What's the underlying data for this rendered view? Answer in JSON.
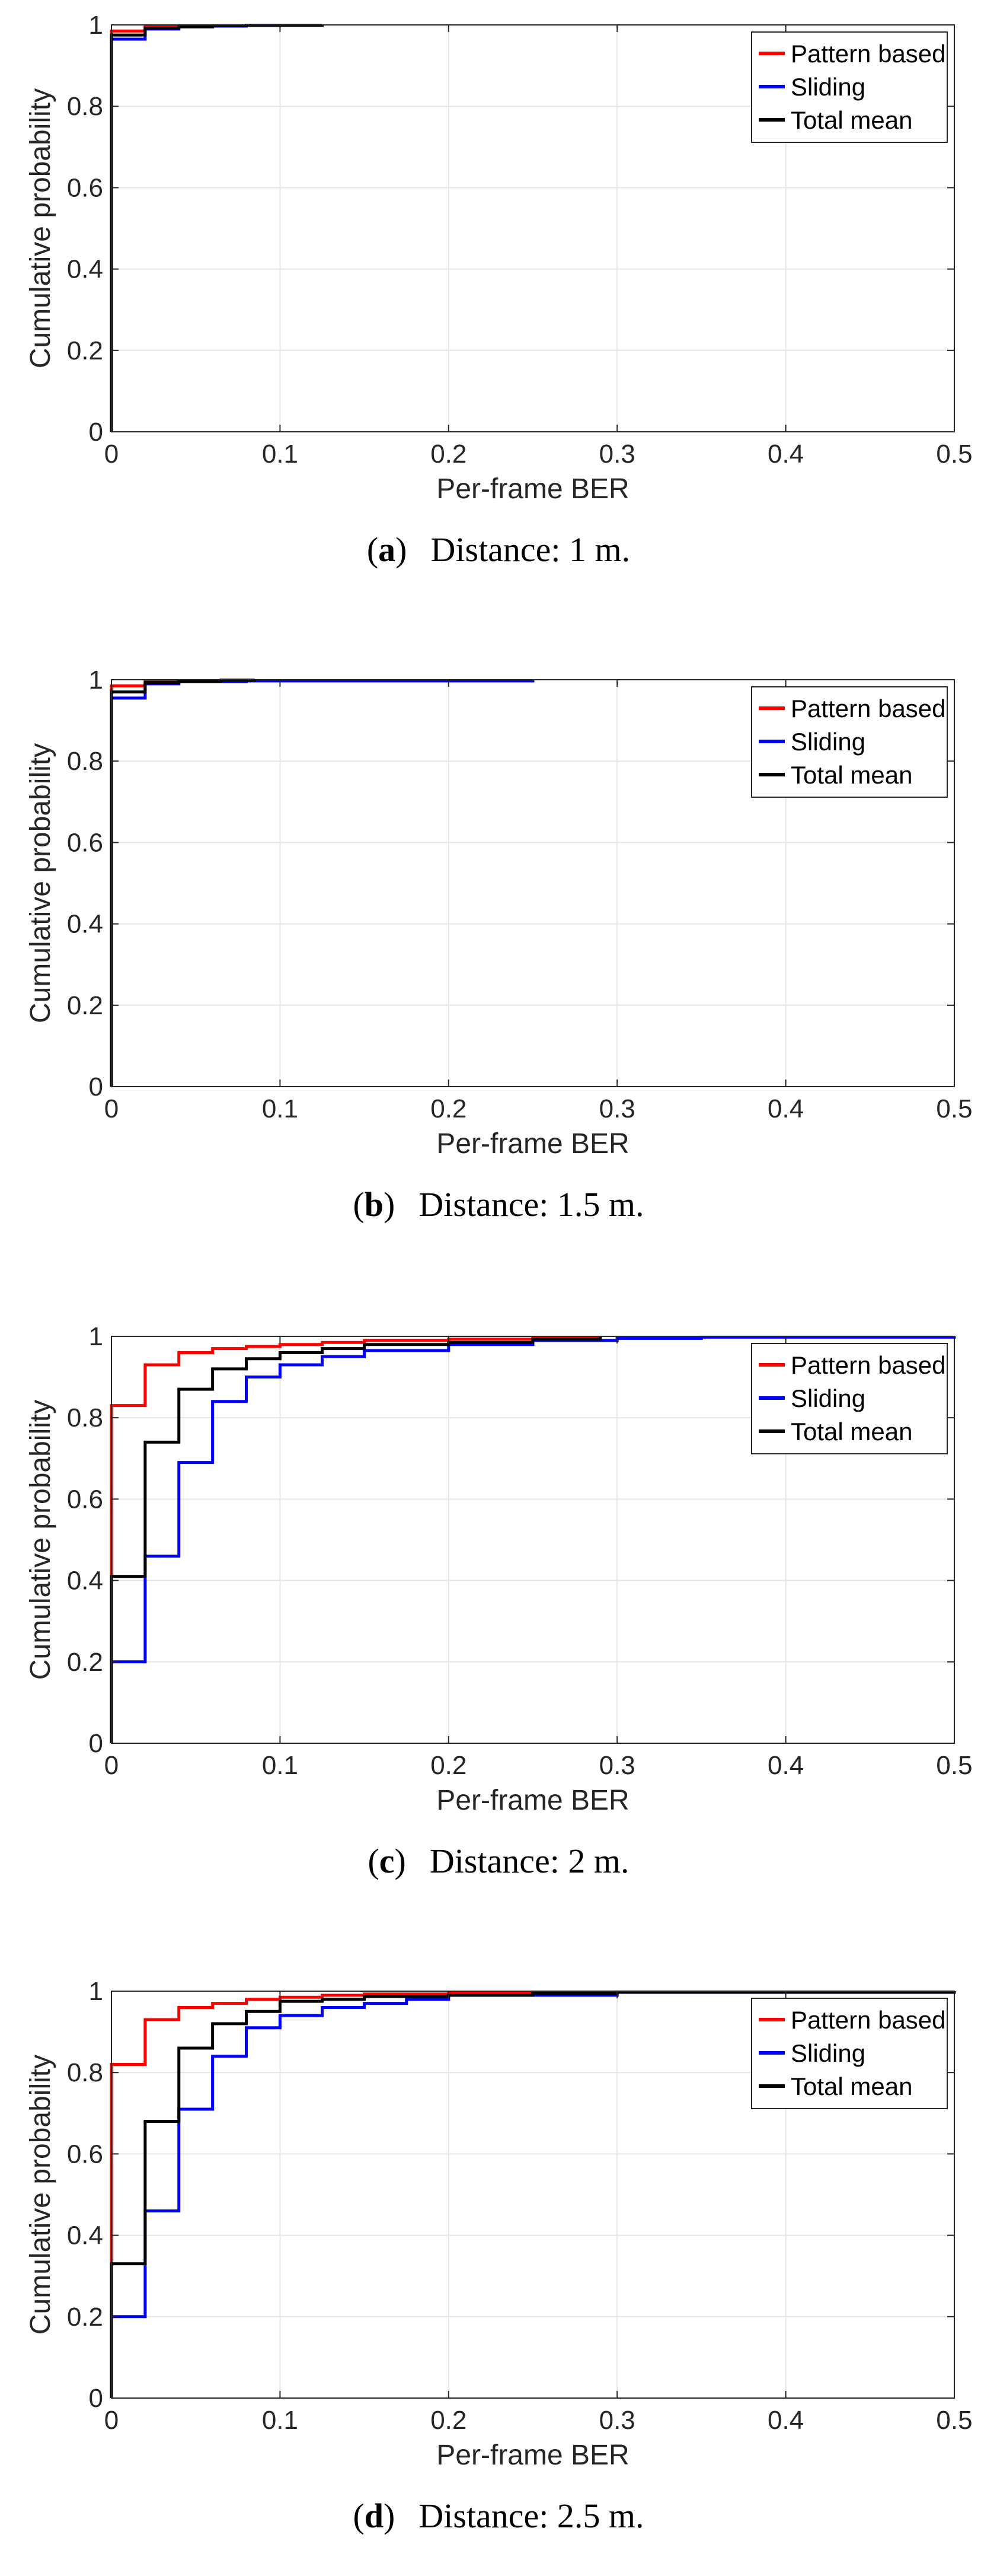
{
  "figure": {
    "series_colors": {
      "Pattern based": "#ff0000",
      "Sliding": "#0000ff",
      "Total mean": "#000000"
    }
  },
  "chart_data": [
    {
      "type": "line",
      "step": true,
      "caption_letter": "a",
      "caption_text": "Distance: 1 m.",
      "xlabel": "Per-frame BER",
      "ylabel": "Cumulative probability",
      "xlim": [
        0,
        0.5
      ],
      "ylim": [
        0,
        1
      ],
      "xticks": [
        0,
        0.1,
        0.2,
        0.3,
        0.4,
        0.5
      ],
      "xtick_labels": [
        "0",
        "0.1",
        "0.2",
        "0.3",
        "0.4",
        "0.5"
      ],
      "yticks": [
        0,
        0.2,
        0.4,
        0.6,
        0.8,
        1
      ],
      "ytick_labels": [
        "0",
        "0.2",
        "0.4",
        "0.6",
        "0.8",
        "1"
      ],
      "grid": true,
      "legend_position": "top-right",
      "series": [
        {
          "name": "Pattern based",
          "color": "#ff0000",
          "x": [
            0,
            0,
            0.02,
            0.04
          ],
          "y": [
            0,
            0.985,
            0.995,
            1.0
          ]
        },
        {
          "name": "Sliding",
          "color": "#0000ff",
          "x": [
            0,
            0,
            0.02,
            0.04,
            0.06,
            0.08,
            0.1
          ],
          "y": [
            0,
            0.965,
            0.99,
            0.995,
            0.997,
            0.999,
            1.0
          ]
        },
        {
          "name": "Total mean",
          "color": "#000000",
          "x": [
            0,
            0,
            0.02,
            0.04,
            0.06,
            0.08,
            0.125
          ],
          "y": [
            0,
            0.975,
            0.992,
            0.996,
            0.998,
            0.999,
            1.0
          ]
        }
      ]
    },
    {
      "type": "line",
      "step": true,
      "caption_letter": "b",
      "caption_text": "Distance: 1.5 m.",
      "xlabel": "Per-frame BER",
      "ylabel": "Cumulative probability",
      "xlim": [
        0,
        0.5
      ],
      "ylim": [
        0,
        1
      ],
      "xticks": [
        0,
        0.1,
        0.2,
        0.3,
        0.4,
        0.5
      ],
      "xtick_labels": [
        "0",
        "0.1",
        "0.2",
        "0.3",
        "0.4",
        "0.5"
      ],
      "yticks": [
        0,
        0.2,
        0.4,
        0.6,
        0.8,
        1
      ],
      "ytick_labels": [
        "0",
        "0.2",
        "0.4",
        "0.6",
        "0.8",
        "1"
      ],
      "grid": true,
      "legend_position": "top-right",
      "series": [
        {
          "name": "Pattern based",
          "color": "#ff0000",
          "x": [
            0,
            0,
            0.02,
            0.04
          ],
          "y": [
            0,
            0.985,
            0.995,
            1.0
          ]
        },
        {
          "name": "Sliding",
          "color": "#0000ff",
          "x": [
            0,
            0,
            0.02,
            0.04,
            0.08,
            0.25
          ],
          "y": [
            0,
            0.955,
            0.99,
            0.995,
            0.997,
            1.0
          ]
        },
        {
          "name": "Total mean",
          "color": "#000000",
          "x": [
            0,
            0,
            0.02,
            0.04,
            0.065,
            0.085
          ],
          "y": [
            0,
            0.97,
            0.993,
            0.996,
            0.999,
            1.0
          ]
        }
      ]
    },
    {
      "type": "line",
      "step": true,
      "caption_letter": "c",
      "caption_text": "Distance: 2 m.",
      "xlabel": "Per-frame BER",
      "ylabel": "Cumulative probability",
      "xlim": [
        0,
        0.5
      ],
      "ylim": [
        0,
        1
      ],
      "xticks": [
        0,
        0.1,
        0.2,
        0.3,
        0.4,
        0.5
      ],
      "xtick_labels": [
        "0",
        "0.1",
        "0.2",
        "0.3",
        "0.4",
        "0.5"
      ],
      "yticks": [
        0,
        0.2,
        0.4,
        0.6,
        0.8,
        1
      ],
      "ytick_labels": [
        "0",
        "0.2",
        "0.4",
        "0.6",
        "0.8",
        "1"
      ],
      "grid": true,
      "legend_position": "top-right",
      "series": [
        {
          "name": "Pattern based",
          "color": "#ff0000",
          "x": [
            0,
            0,
            0.02,
            0.04,
            0.06,
            0.08,
            0.1,
            0.125,
            0.15,
            0.2,
            0.25,
            0.29
          ],
          "y": [
            0,
            0.83,
            0.93,
            0.96,
            0.97,
            0.975,
            0.98,
            0.985,
            0.99,
            0.993,
            0.997,
            1.0
          ]
        },
        {
          "name": "Sliding",
          "color": "#0000ff",
          "x": [
            0,
            0,
            0.02,
            0.04,
            0.06,
            0.08,
            0.1,
            0.125,
            0.15,
            0.2,
            0.25,
            0.3,
            0.35,
            0.5
          ],
          "y": [
            0,
            0.2,
            0.46,
            0.69,
            0.84,
            0.9,
            0.93,
            0.95,
            0.965,
            0.98,
            0.99,
            0.995,
            0.998,
            1.0
          ]
        },
        {
          "name": "Total mean",
          "color": "#000000",
          "x": [
            0,
            0,
            0.02,
            0.04,
            0.06,
            0.08,
            0.1,
            0.125,
            0.15,
            0.2,
            0.25,
            0.29
          ],
          "y": [
            0,
            0.41,
            0.74,
            0.87,
            0.92,
            0.945,
            0.96,
            0.97,
            0.98,
            0.985,
            0.993,
            1.0
          ]
        }
      ]
    },
    {
      "type": "line",
      "step": true,
      "caption_letter": "d",
      "caption_text": "Distance: 2.5 m.",
      "xlabel": "Per-frame BER",
      "ylabel": "Cumulative probability",
      "xlim": [
        0,
        0.5
      ],
      "ylim": [
        0,
        1
      ],
      "xticks": [
        0,
        0.1,
        0.2,
        0.3,
        0.4,
        0.5
      ],
      "xtick_labels": [
        "0",
        "0.1",
        "0.2",
        "0.3",
        "0.4",
        "0.5"
      ],
      "yticks": [
        0,
        0.2,
        0.4,
        0.6,
        0.8,
        1
      ],
      "ytick_labels": [
        "0",
        "0.2",
        "0.4",
        "0.6",
        "0.8",
        "1"
      ],
      "grid": true,
      "legend_position": "top-right",
      "series": [
        {
          "name": "Pattern based",
          "color": "#ff0000",
          "x": [
            0,
            0,
            0.02,
            0.04,
            0.06,
            0.08,
            0.1,
            0.125,
            0.15,
            0.2,
            0.25,
            0.3
          ],
          "y": [
            0,
            0.82,
            0.93,
            0.96,
            0.97,
            0.98,
            0.985,
            0.99,
            0.993,
            0.996,
            0.998,
            1.0
          ]
        },
        {
          "name": "Sliding",
          "color": "#0000ff",
          "x": [
            0,
            0,
            0.02,
            0.04,
            0.06,
            0.08,
            0.1,
            0.125,
            0.15,
            0.175,
            0.2,
            0.3,
            0.5
          ],
          "y": [
            0,
            0.2,
            0.46,
            0.71,
            0.84,
            0.91,
            0.94,
            0.96,
            0.97,
            0.98,
            0.99,
            0.997,
            1.0
          ]
        },
        {
          "name": "Total mean",
          "color": "#000000",
          "x": [
            0,
            0,
            0.02,
            0.04,
            0.06,
            0.08,
            0.1,
            0.125,
            0.15,
            0.2,
            0.25,
            0.3,
            0.5
          ],
          "y": [
            0,
            0.33,
            0.68,
            0.86,
            0.92,
            0.95,
            0.975,
            0.98,
            0.987,
            0.99,
            0.995,
            0.998,
            1.0
          ]
        }
      ]
    }
  ]
}
